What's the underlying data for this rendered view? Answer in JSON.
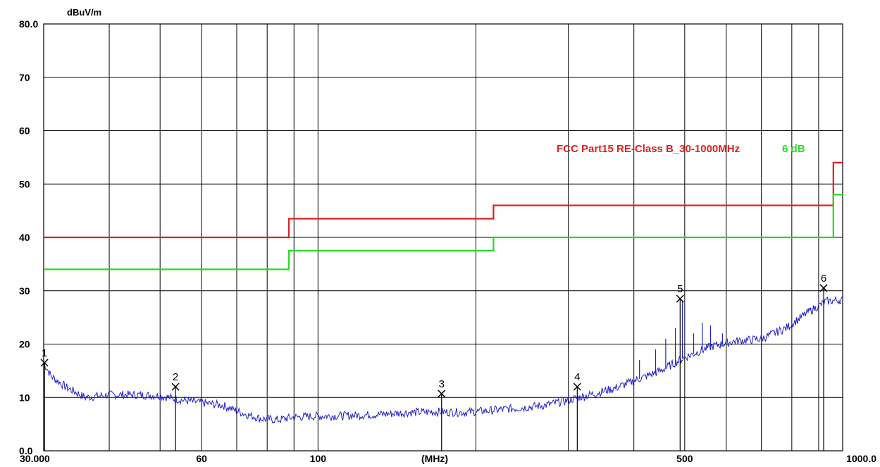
{
  "chart_data": {
    "type": "line",
    "ylabel": "dBuV/m",
    "xlabel": "(MHz)",
    "x_scale": "log",
    "xlim": [
      30,
      1000
    ],
    "ylim": [
      0,
      80
    ],
    "grid": true,
    "y_tick_labels": [
      {
        "value": 0,
        "label": "0.0"
      },
      {
        "value": 10,
        "label": "10"
      },
      {
        "value": 20,
        "label": "20"
      },
      {
        "value": 30,
        "label": "30"
      },
      {
        "value": 40,
        "label": "40"
      },
      {
        "value": 50,
        "label": "50"
      },
      {
        "value": 60,
        "label": "60"
      },
      {
        "value": 70,
        "label": "70"
      },
      {
        "value": 80,
        "label": "80.0"
      }
    ],
    "x_tick_labels": [
      {
        "value": 30,
        "label": "30.000"
      },
      {
        "value": 60,
        "label": "60"
      },
      {
        "value": 100,
        "label": "100"
      },
      {
        "value": 500,
        "label": "500"
      },
      {
        "value": 1000,
        "label": "1000.0"
      }
    ],
    "x_grid_values": [
      40,
      50,
      60,
      70,
      80,
      90,
      100,
      200,
      300,
      400,
      500,
      600,
      700,
      800,
      900
    ],
    "series": [
      {
        "name": "FCC Part15 RE-Class B_30-1000MHz",
        "color": "#e02020",
        "x": [
          30,
          88,
          88,
          216,
          216,
          960,
          960,
          1000
        ],
        "y": [
          40,
          40,
          43.5,
          43.5,
          46,
          46,
          54,
          54
        ]
      },
      {
        "name": "6 dB",
        "color": "#22dd22",
        "x": [
          30,
          88,
          88,
          216,
          216,
          960,
          960,
          1000
        ],
        "y": [
          34,
          34,
          37.5,
          37.5,
          40,
          40,
          48,
          48
        ]
      },
      {
        "color": "#2020c8",
        "x": [
          30,
          31,
          33,
          36,
          40,
          45,
          50,
          55,
          60,
          66,
          72,
          78,
          84,
          90,
          100,
          115,
          130,
          150,
          170,
          190,
          210,
          240,
          270,
          300,
          330,
          370,
          410,
          450,
          500,
          560,
          620,
          700,
          780,
          860,
          930,
          1000
        ],
        "y": [
          16.5,
          14,
          12,
          10,
          10.5,
          10.5,
          10.3,
          9.5,
          9,
          8.5,
          7,
          6,
          5.8,
          6.3,
          6.5,
          6.6,
          6.8,
          7.2,
          7.3,
          7.2,
          7.5,
          8,
          8.5,
          9.5,
          10.5,
          11.8,
          13.5,
          15,
          17.5,
          19.5,
          20.5,
          21,
          23,
          26,
          28,
          28.3
        ]
      }
    ],
    "spikes": [
      {
        "x": 410,
        "y": 17
      },
      {
        "x": 440,
        "y": 19
      },
      {
        "x": 460,
        "y": 21
      },
      {
        "x": 480,
        "y": 23
      },
      {
        "x": 495,
        "y": 28
      },
      {
        "x": 520,
        "y": 22
      },
      {
        "x": 540,
        "y": 24
      },
      {
        "x": 560,
        "y": 23.5
      },
      {
        "x": 590,
        "y": 22
      }
    ],
    "markers": [
      {
        "label": "1",
        "x": 30.1,
        "y": 16.5
      },
      {
        "label": "2",
        "x": 53.5,
        "y": 12
      },
      {
        "label": "3",
        "x": 172,
        "y": 10.7
      },
      {
        "label": "4",
        "x": 312,
        "y": 12
      },
      {
        "label": "5",
        "x": 490,
        "y": 28.5
      },
      {
        "label": "6",
        "x": 920,
        "y": 30.5
      }
    ],
    "legend": [
      {
        "text": "FCC Part15 RE-Class B_30-1000MHz",
        "color": "#e02020"
      },
      {
        "text": "6 dB",
        "color": "#22dd22"
      }
    ]
  }
}
